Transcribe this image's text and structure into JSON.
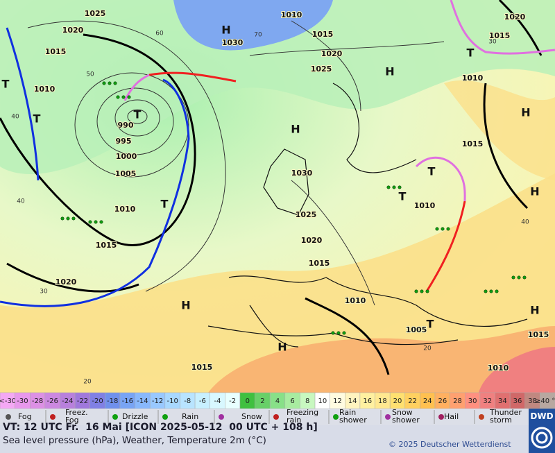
{
  "map": {
    "isobar_labels": [
      1025,
      1020,
      1015,
      1010,
      990,
      995,
      1000,
      1005,
      1010,
      1015,
      1020,
      1030,
      1010,
      1015,
      1020,
      1025,
      1030,
      1025,
      1020,
      1015,
      1010,
      1005,
      1010,
      1015,
      1010,
      1015,
      1020,
      1015,
      1010,
      1015
    ],
    "latitude_labels": [
      60,
      50,
      40,
      40,
      30,
      20,
      20,
      40,
      70,
      30
    ],
    "pressure_centers": [
      "H",
      "H",
      "H",
      "H",
      "H",
      "H",
      "H",
      "H",
      "T",
      "T",
      "T",
      "T",
      "T",
      "T",
      "T",
      "T"
    ]
  },
  "color_scale": {
    "labels": [
      "<-30",
      -30,
      -28,
      -26,
      -24,
      -22,
      -20,
      -18,
      -16,
      -14,
      -12,
      -10,
      -8,
      -6,
      -4,
      -2,
      0,
      2,
      4,
      6,
      8,
      10,
      12,
      14,
      16,
      18,
      20,
      22,
      24,
      26,
      28,
      30,
      32,
      34,
      36,
      38,
      "≥40 °C"
    ],
    "colors": [
      "#f4a8f4",
      "#e898ec",
      "#dc90e4",
      "#cc88e0",
      "#b880dc",
      "#a078dc",
      "#8080e4",
      "#7090ec",
      "#78a4f4",
      "#88b8fc",
      "#98c8ff",
      "#a8d8ff",
      "#b8e4ff",
      "#c8f0ff",
      "#d8f8ff",
      "#e8ffff",
      "#40c040",
      "#68d068",
      "#88e088",
      "#a8eca0",
      "#c8f8c0",
      "#ffffff",
      "#fffbe0",
      "#fff4c0",
      "#fff0a0",
      "#ffe890",
      "#ffe070",
      "#ffd060",
      "#ffc050",
      "#ffb060",
      "#ffa070",
      "#ff9080",
      "#f08080",
      "#e07070",
      "#d06868",
      "#c08880",
      "#b8a8a0"
    ]
  },
  "weather_legend": [
    [
      "Fog"
    ],
    [
      "Freez.",
      "Fog"
    ],
    [
      "Drizzle"
    ],
    [
      "Rain"
    ],
    [
      "Snow"
    ],
    [
      "Freezing",
      "rain"
    ],
    [
      "Rain",
      "shower"
    ],
    [
      "Snow",
      "shower"
    ],
    [
      "Hail"
    ],
    [
      "Thunder",
      "storm"
    ]
  ],
  "footer": {
    "valid_time": "VT: 12 UTC Fr.  16 Mai [ICON 2025-05-12  00 UTC + 108 h]",
    "description": "Sea level pressure (hPa), Weather, Temperature 2m (°C)",
    "copyright": "© 2025 Deutscher Wetterdienst",
    "logo": "DWD"
  }
}
